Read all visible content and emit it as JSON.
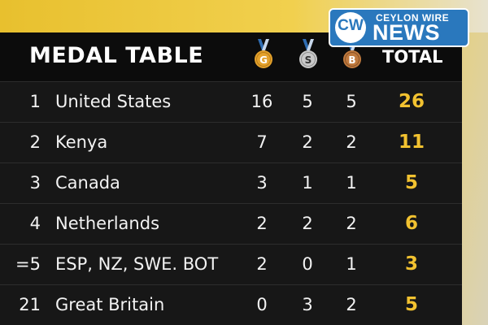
{
  "branding": {
    "logo_mark": "CW",
    "logo_top": "CEYLON WIRE",
    "logo_bottom": "NEWS"
  },
  "table": {
    "title": "MEDAL TABLE",
    "medals": {
      "gold": {
        "letter": "G",
        "color": "#e3a12c"
      },
      "silver": {
        "letter": "S",
        "color": "#c9c9c9"
      },
      "bronze": {
        "letter": "B",
        "color": "#c07a3e"
      }
    },
    "total_header": "TOTAL",
    "rows": [
      {
        "rank": "1",
        "country": "United States",
        "gold": "16",
        "silver": "5",
        "bronze": "5",
        "total": "26"
      },
      {
        "rank": "2",
        "country": "Kenya",
        "gold": "7",
        "silver": "2",
        "bronze": "2",
        "total": "11"
      },
      {
        "rank": "3",
        "country": "Canada",
        "gold": "3",
        "silver": "1",
        "bronze": "1",
        "total": "5"
      },
      {
        "rank": "4",
        "country": "Netherlands",
        "gold": "2",
        "silver": "2",
        "bronze": "2",
        "total": "6"
      },
      {
        "rank": "=5",
        "country": "ESP, NZ, SWE. BOT",
        "gold": "2",
        "silver": "0",
        "bronze": "1",
        "total": "3"
      },
      {
        "rank": "21",
        "country": "Great Britain",
        "gold": "0",
        "silver": "3",
        "bronze": "2",
        "total": "5"
      }
    ]
  },
  "colors": {
    "total_accent": "#f2c230",
    "panel": "#171717",
    "background": "#f0cf52"
  }
}
